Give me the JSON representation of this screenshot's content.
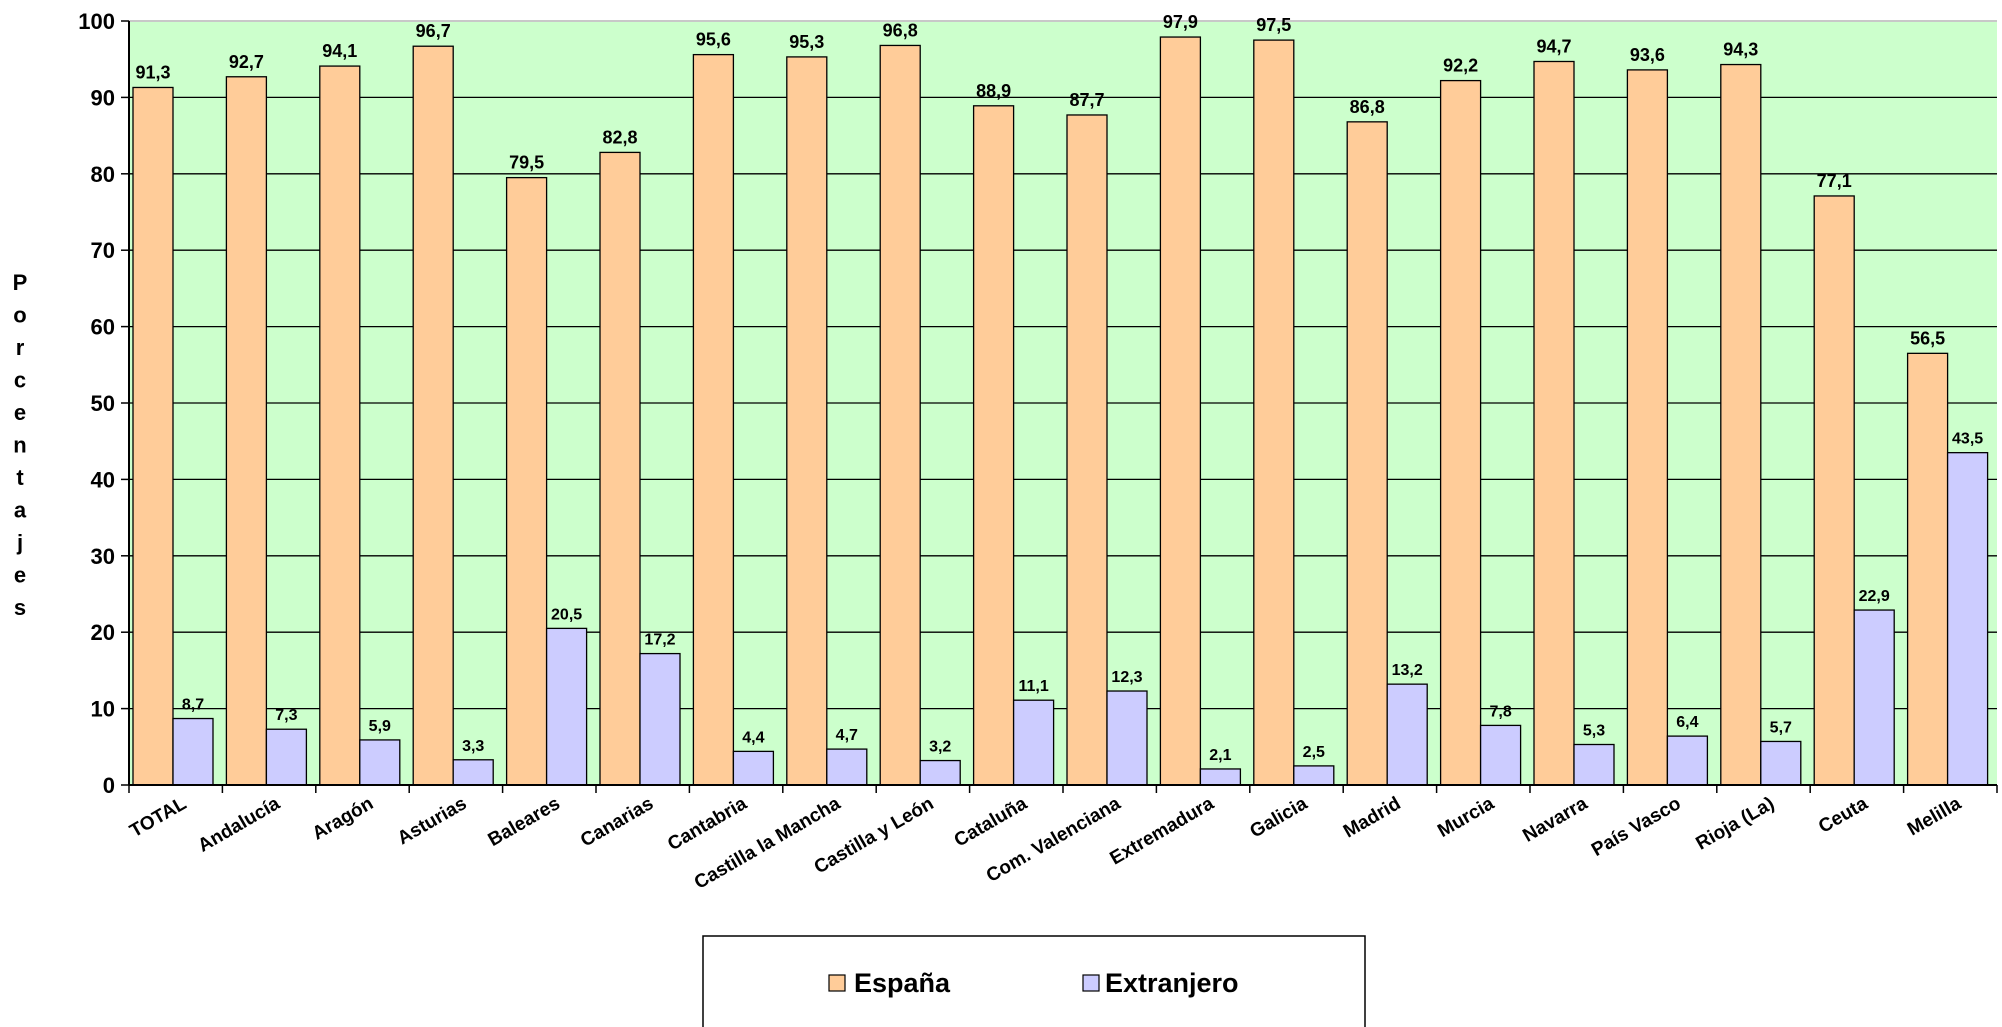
{
  "chart_data": {
    "type": "bar",
    "title": "",
    "xlabel": "",
    "ylabel": "Porcentajes",
    "ylim": [
      0,
      100
    ],
    "yticks": [
      0,
      10,
      20,
      30,
      40,
      50,
      60,
      70,
      80,
      90,
      100
    ],
    "grid": true,
    "legend_position": "bottom-center",
    "plot_background": "#ccffcc",
    "categories": [
      "TOTAL",
      "Andalucía",
      "Aragón",
      "Asturias",
      "Baleares",
      "Canarias",
      "Cantabria",
      "Castilla la Mancha",
      "Castilla y León",
      "Cataluña",
      "Com. Valenciana",
      "Extremadura",
      "Galicia",
      "Madrid",
      "Murcia",
      "Navarra",
      "País Vasco",
      "Rioja (La)",
      "Ceuta",
      "Melilla"
    ],
    "series": [
      {
        "name": "España",
        "color": "#ffcc99",
        "values": [
          91.3,
          92.7,
          94.1,
          96.7,
          79.5,
          82.8,
          95.6,
          95.3,
          96.8,
          88.9,
          87.7,
          97.9,
          97.5,
          86.8,
          92.2,
          94.7,
          93.6,
          94.3,
          77.1,
          56.5
        ],
        "labels": [
          "91,3",
          "92,7",
          "94,1",
          "96,7",
          "79,5",
          "82,8",
          "95,6",
          "95,3",
          "96,8",
          "88,9",
          "87,7",
          "97,9",
          "97,5",
          "86,8",
          "92,2",
          "94,7",
          "93,6",
          "94,3",
          "77,1",
          "56,5"
        ]
      },
      {
        "name": "Extranjero",
        "color": "#ccccff",
        "values": [
          8.7,
          7.3,
          5.9,
          3.3,
          20.5,
          17.2,
          4.4,
          4.7,
          3.2,
          11.1,
          12.3,
          2.1,
          2.5,
          13.2,
          7.8,
          5.3,
          6.4,
          5.7,
          22.9,
          43.5
        ],
        "labels": [
          "8,7",
          "7,3",
          "5,9",
          "3,3",
          "20,5",
          "17,2",
          "4,4",
          "4,7",
          "3,2",
          "11,1",
          "12,3",
          "2,1",
          "2,5",
          "13,2",
          "7,8",
          "5,3",
          "6,4",
          "5,7",
          "22,9",
          "43,5"
        ]
      }
    ]
  }
}
